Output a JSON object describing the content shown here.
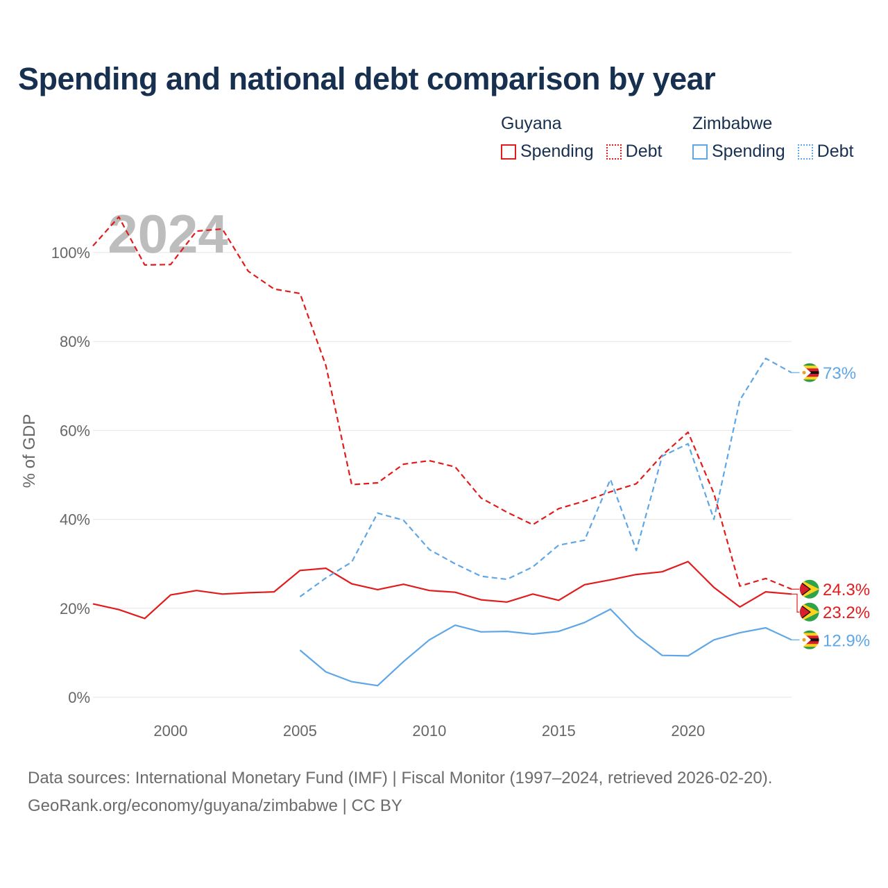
{
  "title": "Spending and national debt comparison by year",
  "year_label": "2024",
  "legend": {
    "groups": [
      {
        "name": "Guyana",
        "items": [
          {
            "label": "Spending",
            "style": "solid",
            "color": "#e11b1b"
          },
          {
            "label": "Debt",
            "style": "dotted",
            "color": "#e11b1b"
          }
        ]
      },
      {
        "name": "Zimbabwe",
        "items": [
          {
            "label": "Spending",
            "style": "solid",
            "color": "#5ea6e6"
          },
          {
            "label": "Debt",
            "style": "dotted",
            "color": "#5ea6e6"
          }
        ]
      }
    ]
  },
  "footer": {
    "line1": "Data sources: International Monetary Fund (IMF) | Fiscal Monitor (1997–2024, retrieved 2026-02-20).",
    "line2": "GeoRank.org/economy/guyana/zimbabwe | CC BY"
  },
  "chart_data": {
    "type": "line",
    "title": "Spending and national debt comparison by year",
    "ylabel": "% of GDP",
    "xlabel": "",
    "xlim": [
      1997,
      2024
    ],
    "ylim": [
      0,
      100
    ],
    "x_ticks": [
      2000,
      2005,
      2010,
      2015,
      2020
    ],
    "y_ticks": [
      0,
      20,
      40,
      60,
      80,
      100
    ],
    "y_tick_labels": [
      "0%",
      "20%",
      "40%",
      "60%",
      "80%",
      "100%"
    ],
    "series": [
      {
        "name": "Guyana Spending",
        "color": "#e11b1b",
        "dashed": false,
        "x": [
          1997,
          1998,
          1999,
          2000,
          2001,
          2002,
          2003,
          2004,
          2005,
          2006,
          2007,
          2008,
          2009,
          2010,
          2011,
          2012,
          2013,
          2014,
          2015,
          2016,
          2017,
          2018,
          2019,
          2020,
          2021,
          2022,
          2023,
          2024
        ],
        "values": [
          21.0,
          19.7,
          17.7,
          23.0,
          24.0,
          23.2,
          23.5,
          23.7,
          28.5,
          29.0,
          25.5,
          24.2,
          25.4,
          24.0,
          23.6,
          21.9,
          21.4,
          23.2,
          21.8,
          25.3,
          26.4,
          27.6,
          28.2,
          30.5,
          24.7,
          20.3,
          23.7,
          23.2
        ],
        "end_label": "23.2%",
        "flag": "guyana"
      },
      {
        "name": "Guyana Debt",
        "color": "#e11b1b",
        "dashed": true,
        "x": [
          1997,
          1998,
          1999,
          2000,
          2001,
          2002,
          2003,
          2004,
          2005,
          2006,
          2007,
          2008,
          2009,
          2010,
          2011,
          2012,
          2013,
          2014,
          2015,
          2016,
          2017,
          2018,
          2019,
          2020,
          2021,
          2022,
          2023,
          2024
        ],
        "values": [
          101.5,
          108.0,
          97.2,
          97.3,
          104.8,
          105.3,
          95.8,
          91.8,
          90.8,
          74.6,
          47.8,
          48.2,
          52.4,
          53.2,
          51.8,
          44.8,
          41.6,
          38.8,
          42.4,
          44.1,
          46.2,
          48.0,
          54.4,
          59.6,
          45.8,
          25.0,
          26.7,
          24.3
        ],
        "end_label": "24.3%",
        "flag": "guyana"
      },
      {
        "name": "Zimbabwe Spending",
        "color": "#5ea6e6",
        "dashed": false,
        "x": [
          2005,
          2006,
          2007,
          2008,
          2009,
          2010,
          2011,
          2012,
          2013,
          2014,
          2015,
          2016,
          2017,
          2018,
          2019,
          2020,
          2021,
          2022,
          2023,
          2024
        ],
        "values": [
          10.6,
          5.7,
          3.5,
          2.6,
          8.0,
          12.9,
          16.2,
          14.7,
          14.8,
          14.2,
          14.8,
          16.8,
          19.8,
          13.8,
          9.4,
          9.3,
          12.9,
          14.5,
          15.6,
          12.9
        ],
        "end_label": "12.9%",
        "flag": "zimbabwe"
      },
      {
        "name": "Zimbabwe Debt",
        "color": "#5ea6e6",
        "dashed": true,
        "x": [
          2005,
          2006,
          2007,
          2008,
          2009,
          2010,
          2011,
          2012,
          2013,
          2014,
          2015,
          2016,
          2017,
          2018,
          2019,
          2020,
          2021,
          2022,
          2023,
          2024
        ],
        "values": [
          22.6,
          26.8,
          30.4,
          41.4,
          39.8,
          33.2,
          30.0,
          27.2,
          26.5,
          29.3,
          34.2,
          35.3,
          49.0,
          33.0,
          54.2,
          57.0,
          40.0,
          66.8,
          76.2,
          73.0
        ],
        "end_label": "73%",
        "flag": "zimbabwe"
      }
    ]
  }
}
